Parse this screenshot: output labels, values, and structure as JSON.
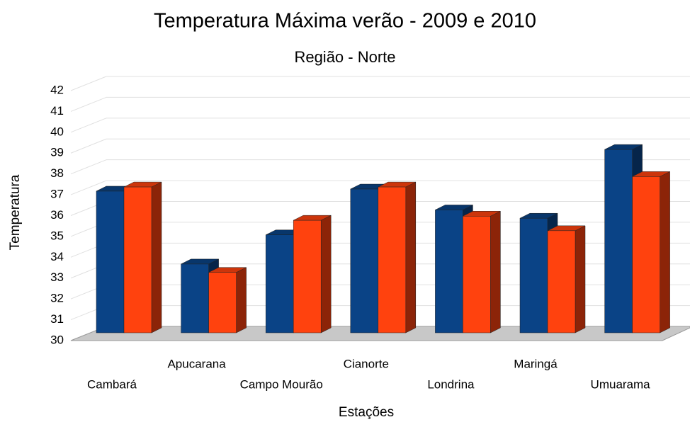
{
  "chart_data": {
    "type": "bar3d",
    "title": "Temperatura Máxima verão - 2009 e 2010",
    "subtitle": "Região - Norte",
    "x_label": "Estações",
    "y_label": "Temperatura",
    "categories": [
      "Cambará",
      "Apucarana",
      "Campo Mourão",
      "Cianorte",
      "Londrina",
      "Maringá",
      "Umuarama"
    ],
    "series": [
      {
        "color": "#0a4386",
        "values": [
          36.8,
          33.3,
          34.7,
          36.9,
          35.9,
          35.5,
          38.8
        ]
      },
      {
        "color": "#ff420e",
        "values": [
          37.0,
          32.9,
          35.4,
          37.0,
          35.6,
          34.9,
          37.5
        ]
      }
    ],
    "ylim": [
      30,
      42
    ],
    "yticks": [
      30,
      31,
      32,
      33,
      34,
      35,
      36,
      37,
      38,
      39,
      40,
      41,
      42
    ],
    "grid": true
  }
}
